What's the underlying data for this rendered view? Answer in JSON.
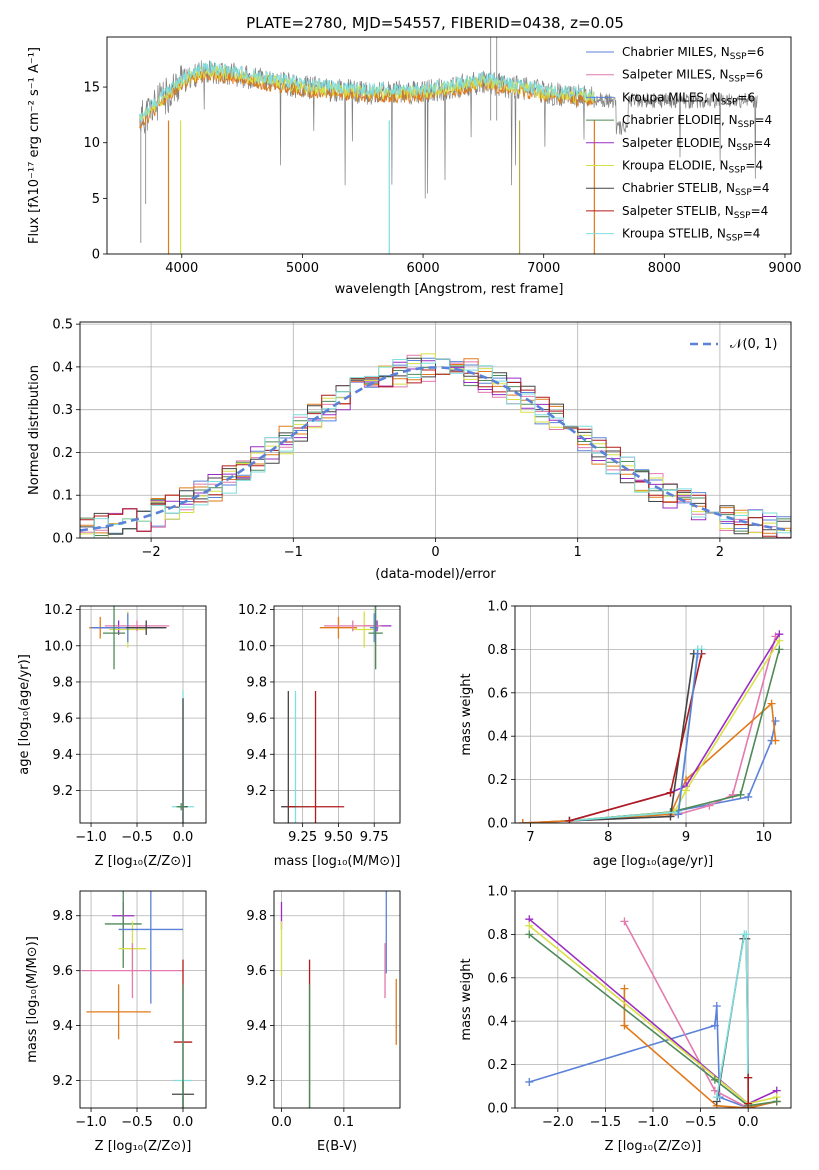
{
  "colors": {
    "Chabrier MILES": "#5b82d8",
    "Salpeter MILES": "#e47aae",
    "Kroupa MILES": "#5b82d8",
    "Chabrier ELODIE": "#4f8a57",
    "Salpeter ELODIE": "#9a2cc2",
    "Kroupa ELODIE": "#d8e047",
    "Chabrier STELIB": "#444444",
    "Salpeter STELIB": "#b01b1b",
    "Kroupa STELIB": "#7fdede",
    "orange": "#e07a1a"
  },
  "chart_data": [
    {
      "id": "spectrum",
      "type": "line",
      "title": "PLATE=2780, MJD=54557, FIBERID=0438, z=0.05",
      "xlabel": "wavelength [Angstrom, rest frame]",
      "ylabel": "Flux [fλ10⁻¹⁷ erg cm⁻² s⁻¹ A⁻¹]",
      "xlim": [
        3380,
        9050
      ],
      "ylim": [
        0,
        19.5
      ],
      "xticks": [
        "4000",
        "5000",
        "6000",
        "7000",
        "8000",
        "9000"
      ],
      "yticks": [
        "0",
        "5",
        "10",
        "15"
      ],
      "legend": [
        {
          "name": "Chabrier MILES",
          "sub": "SSP",
          "n": "=6",
          "color": "#5b82d8"
        },
        {
          "name": "Salpeter MILES",
          "sub": "SSP",
          "n": "=6",
          "color": "#e47aae"
        },
        {
          "name": "Kroupa MILES",
          "sub": "SSP",
          "n": "=6",
          "color": "#5b82d8"
        },
        {
          "name": "Chabrier ELODIE",
          "sub": "SSP",
          "n": "=4",
          "color": "#4f8a57"
        },
        {
          "name": "Salpeter ELODIE",
          "sub": "SSP",
          "n": "=4",
          "color": "#9a2cc2"
        },
        {
          "name": "Kroupa ELODIE",
          "sub": "SSP",
          "n": "=4",
          "color": "#d8e047"
        },
        {
          "name": "Chabrier STELIB",
          "sub": "SSP",
          "n": "=4",
          "color": "#444444"
        },
        {
          "name": "Salpeter STELIB",
          "sub": "SSP",
          "n": "=4",
          "color": "#b01b1b"
        },
        {
          "name": "Kroupa STELIB",
          "sub": "SSP",
          "n": "=4",
          "color": "#7fdede"
        }
      ],
      "continuum": {
        "x": [
          3650,
          4000,
          4200,
          4500,
          5000,
          5500,
          6000,
          6500,
          7000,
          7400
        ],
        "y": [
          12,
          15.5,
          16.5,
          16.0,
          15.0,
          14.5,
          14.5,
          15.5,
          14.5,
          14.0
        ]
      },
      "model_extent": [
        3650,
        7420
      ],
      "data_extent": [
        3650,
        8770
      ]
    },
    {
      "id": "residuals",
      "type": "histogram",
      "xlabel": "(data-model)/error",
      "ylabel": "Normed distribution",
      "xlim": [
        -2.5,
        2.5
      ],
      "ylim": [
        0,
        0.505
      ],
      "xticks": [
        "-2",
        "-1",
        "0",
        "1",
        "2"
      ],
      "yticks": [
        "0.0",
        "0.1",
        "0.2",
        "0.3",
        "0.4",
        "0.5"
      ],
      "legend": "𝒩(0, 1)",
      "bin_width": 0.1,
      "bin_start": -2.5
    },
    {
      "id": "age_vs_Z",
      "type": "errorbar",
      "xlabel": "Z [log₁₀(Z/Z⊙)]",
      "ylabel": "age  [log₁₀(age/yr)]",
      "xlim": [
        -1.12,
        0.25
      ],
      "ylim": [
        9.02,
        10.22
      ],
      "xticks": [
        "-1.0",
        "-0.5",
        "0.0"
      ],
      "yticks": [
        "9.2",
        "9.4",
        "9.6",
        "9.8",
        "10.0",
        "10.2"
      ],
      "points": [
        {
          "x": -0.9,
          "y": 10.1,
          "xe": 0.12,
          "ye": 0.06,
          "c": "#e07a1a"
        },
        {
          "x": -0.7,
          "y": 10.1,
          "xe": 0.28,
          "ye": 0.04,
          "c": "#9a2cc2"
        },
        {
          "x": -0.6,
          "y": 10.09,
          "xe": 0.2,
          "ye": 0.1,
          "c": "#d8e047"
        },
        {
          "x": -0.5,
          "y": 10.11,
          "xe": 0.35,
          "ye": 0.03,
          "c": "#e47aae"
        },
        {
          "x": -0.6,
          "y": 10.1,
          "xe": 0.4,
          "ye": 0.08,
          "c": "#5b82d8"
        },
        {
          "x": -0.75,
          "y": 10.07,
          "xe": 0.12,
          "ye": 0.2,
          "c": "#4f8a57"
        },
        {
          "x": -0.4,
          "y": 10.1,
          "xe": 0.22,
          "ye": 0.04,
          "c": "#444444"
        },
        {
          "x": 0.0,
          "y": 9.11,
          "xe": 0.12,
          "ye": 0.64,
          "c": "#7fdede"
        },
        {
          "x": 0.0,
          "y": 9.11,
          "xe": 0.05,
          "ye": 0.6,
          "c": "#444444"
        },
        {
          "x": -0.02,
          "y": 9.11,
          "xe": 0.05,
          "ye": 0.02,
          "c": "#4f8a57"
        }
      ]
    },
    {
      "id": "age_vs_mass",
      "type": "errorbar",
      "xlabel": "mass [log₁₀(M/M⊙)]",
      "ylabel": "",
      "xlim": [
        9.05,
        9.93
      ],
      "ylim": [
        9.02,
        10.22
      ],
      "xticks": [
        "9.25",
        "9.50",
        "9.75"
      ],
      "yticks": [
        "9.2",
        "9.4",
        "9.6",
        "9.8",
        "10.0",
        "10.2"
      ],
      "points": [
        {
          "x": 9.5,
          "y": 10.1,
          "xe": 0.13,
          "ye": 0.06,
          "c": "#e07a1a"
        },
        {
          "x": 9.77,
          "y": 10.11,
          "xe": 0.1,
          "ye": 0.03,
          "c": "#9a2cc2"
        },
        {
          "x": 9.68,
          "y": 10.09,
          "xe": 0.08,
          "ye": 0.1,
          "c": "#d8e047"
        },
        {
          "x": 9.6,
          "y": 10.11,
          "xe": 0.2,
          "ye": 0.03,
          "c": "#e47aae"
        },
        {
          "x": 9.75,
          "y": 10.1,
          "xe": 0.03,
          "ye": 0.08,
          "c": "#5b82d8"
        },
        {
          "x": 9.76,
          "y": 10.07,
          "xe": 0.05,
          "ye": 0.2,
          "c": "#4f8a57"
        },
        {
          "x": 9.2,
          "y": 9.11,
          "xe": 0.1,
          "ye": 0.64,
          "c": "#7fdede"
        },
        {
          "x": 9.15,
          "y": 9.11,
          "xe": 0.05,
          "ye": 0.64,
          "c": "#444444"
        },
        {
          "x": 9.34,
          "y": 9.11,
          "xe": 0.2,
          "ye": 0.64,
          "c": "#b01b1b"
        }
      ]
    },
    {
      "id": "weight_vs_age",
      "type": "line",
      "xlabel": "age  [log₁₀(age/yr)]",
      "ylabel": "mass weight",
      "xlim": [
        6.8,
        10.35
      ],
      "ylim": [
        0,
        1.0
      ],
      "xticks": [
        "7",
        "8",
        "9",
        "10"
      ],
      "yticks": [
        "0.0",
        "0.2",
        "0.4",
        "0.6",
        "0.8",
        "1.0"
      ],
      "series": [
        {
          "c": "#5b82d8",
          "x": [
            6.9,
            7.5,
            8.8,
            9.8,
            10.1,
            10.15
          ],
          "y": [
            0.0,
            0.01,
            0.05,
            0.12,
            0.38,
            0.47
          ]
        },
        {
          "c": "#e47aae",
          "x": [
            6.9,
            7.5,
            8.8,
            9.3,
            9.6,
            10.15
          ],
          "y": [
            0.0,
            0.01,
            0.03,
            0.08,
            0.13,
            0.86
          ]
        },
        {
          "c": "#e07a1a",
          "x": [
            6.9,
            7.5,
            8.8,
            9.0,
            10.1,
            10.15
          ],
          "y": [
            0.0,
            0.01,
            0.04,
            0.2,
            0.55,
            0.38
          ]
        },
        {
          "c": "#4f8a57",
          "x": [
            7.5,
            8.8,
            9.7,
            10.2
          ],
          "y": [
            0.01,
            0.05,
            0.13,
            0.8
          ]
        },
        {
          "c": "#9a2cc2",
          "x": [
            7.5,
            8.8,
            9.0,
            10.2
          ],
          "y": [
            0.01,
            0.14,
            0.17,
            0.87
          ]
        },
        {
          "c": "#d8e047",
          "x": [
            7.5,
            8.85,
            9.0,
            10.2
          ],
          "y": [
            0.01,
            0.05,
            0.15,
            0.84
          ]
        },
        {
          "c": "#444444",
          "x": [
            7.5,
            8.8,
            9.1,
            9.15
          ],
          "y": [
            0.01,
            0.03,
            0.78,
            0.78
          ]
        },
        {
          "c": "#7fdede",
          "x": [
            7.5,
            8.9,
            9.15,
            9.2
          ],
          "y": [
            0.01,
            0.05,
            0.8,
            0.8
          ]
        },
        {
          "c": "#b01b1b",
          "x": [
            7.5,
            8.8,
            9.2
          ],
          "y": [
            0.01,
            0.14,
            0.78
          ]
        },
        {
          "c": "#5b82d8",
          "x": [
            8.9,
            9.15
          ],
          "y": [
            0.04,
            0.78
          ]
        }
      ]
    },
    {
      "id": "mass_vs_Z",
      "type": "errorbar",
      "xlabel": "Z [log₁₀(Z/Z⊙)]",
      "ylabel": "mass [log₁₀(M/M⊙)]",
      "xlim": [
        -1.12,
        0.25
      ],
      "ylim": [
        9.1,
        9.89
      ],
      "xticks": [
        "-1.0",
        "-0.5",
        "0.0"
      ],
      "yticks": [
        "9.2",
        "9.4",
        "9.6",
        "9.8"
      ],
      "points": [
        {
          "x": -0.65,
          "y": 9.8,
          "xe": 0.12,
          "ye": 0.05,
          "c": "#9a2cc2"
        },
        {
          "x": -0.65,
          "y": 9.77,
          "xe": 0.2,
          "ye": 0.16,
          "c": "#4f8a57"
        },
        {
          "x": -0.55,
          "y": 9.68,
          "xe": 0.15,
          "ye": 0.1,
          "c": "#d8e047"
        },
        {
          "x": -0.35,
          "y": 9.75,
          "xe": 0.35,
          "ye": 0.27,
          "c": "#5b82d8"
        },
        {
          "x": -0.55,
          "y": 9.6,
          "xe": 0.55,
          "ye": 0.1,
          "c": "#e47aae"
        },
        {
          "x": -0.7,
          "y": 9.45,
          "xe": 0.35,
          "ye": 0.1,
          "c": "#e07a1a"
        },
        {
          "x": 0.0,
          "y": 9.34,
          "xe": 0.1,
          "ye": 0.3,
          "c": "#b01b1b"
        },
        {
          "x": 0.0,
          "y": 9.2,
          "xe": 0.1,
          "ye": 0.33,
          "c": "#7fdede"
        },
        {
          "x": 0.0,
          "y": 9.15,
          "xe": 0.12,
          "ye": 0.05,
          "c": "#444444"
        },
        {
          "x": 0.0,
          "y": 9.3,
          "xe": 0.0,
          "ye": 0.25,
          "c": "#4f8a57"
        }
      ]
    },
    {
      "id": "mass_vs_ebv",
      "type": "errorbar",
      "xlabel": "E(B-V)",
      "ylabel": "",
      "xlim": [
        -0.012,
        0.19
      ],
      "ylim": [
        9.1,
        9.89
      ],
      "xticks": [
        "0.0",
        "0.1"
      ],
      "yticks": [
        "9.2",
        "9.4",
        "9.6",
        "9.8"
      ],
      "points": [
        {
          "x": 0.0,
          "y": 9.8,
          "xe": 0,
          "ye": 0.05,
          "c": "#9a2cc2"
        },
        {
          "x": 0.0,
          "y": 9.68,
          "xe": 0,
          "ye": 0.1,
          "c": "#d8e047"
        },
        {
          "x": 0.045,
          "y": 9.34,
          "xe": 0,
          "ye": 0.3,
          "c": "#b01b1b"
        },
        {
          "x": 0.045,
          "y": 9.2,
          "xe": 0,
          "ye": 0.33,
          "c": "#7fdede"
        },
        {
          "x": 0.045,
          "y": 9.3,
          "xe": 0,
          "ye": 0.25,
          "c": "#4f8a57"
        },
        {
          "x": 0.168,
          "y": 9.75,
          "xe": 0,
          "ye": 0.16,
          "c": "#5b82d8"
        },
        {
          "x": 0.166,
          "y": 9.6,
          "xe": 0,
          "ye": 0.1,
          "c": "#e47aae"
        },
        {
          "x": 0.184,
          "y": 9.45,
          "xe": 0,
          "ye": 0.12,
          "c": "#e07a1a"
        }
      ]
    },
    {
      "id": "weight_vs_Z",
      "type": "line",
      "xlabel": "Z [log₁₀(Z/Z⊙)]",
      "ylabel": "mass weight",
      "xlim": [
        -2.45,
        0.45
      ],
      "ylim": [
        0,
        1.0
      ],
      "xticks": [
        "-2.0",
        "-1.5",
        "-1.0",
        "-0.5",
        "0.0"
      ],
      "yticks": [
        "0.0",
        "0.2",
        "0.4",
        "0.6",
        "0.8",
        "1.0"
      ],
      "series": [
        {
          "c": "#5b82d8",
          "x": [
            -2.3,
            -0.35,
            -0.33,
            -0.3,
            0.0,
            0.3
          ],
          "y": [
            0.12,
            0.38,
            0.47,
            0.05,
            0.0,
            0.03
          ]
        },
        {
          "c": "#e47aae",
          "x": [
            -1.3,
            -0.35,
            0.0,
            0.3
          ],
          "y": [
            0.86,
            0.08,
            0.0,
            0.03
          ]
        },
        {
          "c": "#e07a1a",
          "x": [
            -1.3,
            -1.3,
            -0.33,
            0.0,
            0.3
          ],
          "y": [
            0.55,
            0.38,
            0.01,
            0.0,
            0.03
          ]
        },
        {
          "c": "#9a2cc2",
          "x": [
            -2.3,
            0.0,
            0.3
          ],
          "y": [
            0.87,
            0.02,
            0.08
          ]
        },
        {
          "c": "#d8e047",
          "x": [
            -2.3,
            0.0,
            0.3
          ],
          "y": [
            0.84,
            0.02,
            0.05
          ]
        },
        {
          "c": "#4f8a57",
          "x": [
            -2.3,
            -0.35,
            0.0,
            0.3
          ],
          "y": [
            0.8,
            0.13,
            0.01,
            0.03
          ]
        },
        {
          "c": "#444444",
          "x": [
            -0.33,
            -0.05,
            -0.02,
            0.0
          ],
          "y": [
            0.03,
            0.78,
            0.78,
            0.14
          ]
        },
        {
          "c": "#7fdede",
          "x": [
            -0.33,
            -0.04,
            -0.02,
            0.0
          ],
          "y": [
            0.05,
            0.8,
            0.8,
            0.02
          ]
        },
        {
          "c": "#b01b1b",
          "x": [
            0.0,
            0.0
          ],
          "y": [
            0.14,
            0.02
          ]
        }
      ]
    }
  ]
}
